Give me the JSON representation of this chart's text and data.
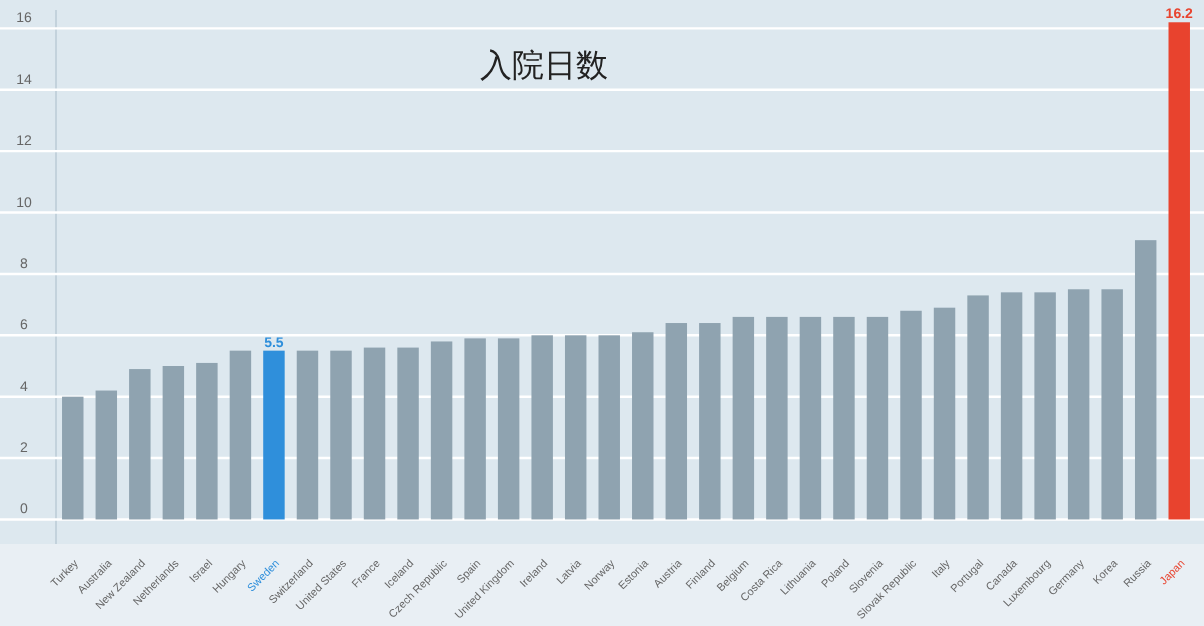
{
  "chart_data": {
    "type": "bar",
    "title": "入院日数",
    "categories": [
      "Turkey",
      "Australia",
      "New Zealand",
      "Netherlands",
      "Israel",
      "Hungary",
      "Sweden",
      "Switzerland",
      "United States",
      "France",
      "Iceland",
      "Czech Republic",
      "Spain",
      "United Kingdom",
      "Ireland",
      "Latvia",
      "Norway",
      "Estonia",
      "Austria",
      "Finland",
      "Belgium",
      "Costa Rica",
      "Lithuania",
      "Poland",
      "Slovenia",
      "Slovak Republic",
      "Italy",
      "Portugal",
      "Canada",
      "Luxembourg",
      "Germany",
      "Korea",
      "Russia",
      "Japan"
    ],
    "values": [
      4.0,
      4.2,
      4.9,
      5.0,
      5.1,
      5.5,
      5.5,
      5.5,
      5.5,
      5.6,
      5.6,
      5.8,
      5.9,
      5.9,
      6.0,
      6.0,
      6.0,
      6.1,
      6.4,
      6.4,
      6.6,
      6.6,
      6.6,
      6.6,
      6.6,
      6.8,
      6.9,
      7.3,
      7.4,
      7.4,
      7.5,
      7.5,
      9.1,
      16.2
    ],
    "colors": [
      "#8fa3b0",
      "#8fa3b0",
      "#8fa3b0",
      "#8fa3b0",
      "#8fa3b0",
      "#8fa3b0",
      "#2f8fdb",
      "#8fa3b0",
      "#8fa3b0",
      "#8fa3b0",
      "#8fa3b0",
      "#8fa3b0",
      "#8fa3b0",
      "#8fa3b0",
      "#8fa3b0",
      "#8fa3b0",
      "#8fa3b0",
      "#8fa3b0",
      "#8fa3b0",
      "#8fa3b0",
      "#8fa3b0",
      "#8fa3b0",
      "#8fa3b0",
      "#8fa3b0",
      "#8fa3b0",
      "#8fa3b0",
      "#8fa3b0",
      "#8fa3b0",
      "#8fa3b0",
      "#8fa3b0",
      "#8fa3b0",
      "#8fa3b0",
      "#8fa3b0",
      "#e8432e"
    ],
    "value_labels": [
      null,
      null,
      null,
      null,
      null,
      null,
      "5.5",
      null,
      null,
      null,
      null,
      null,
      null,
      null,
      null,
      null,
      null,
      null,
      null,
      null,
      null,
      null,
      null,
      null,
      null,
      null,
      null,
      null,
      null,
      null,
      null,
      null,
      null,
      "16.2"
    ],
    "ylim": [
      -0.8,
      16.6
    ],
    "yticks": [
      0,
      2,
      4,
      6,
      8,
      10,
      12,
      14,
      16
    ],
    "grid": "y"
  }
}
